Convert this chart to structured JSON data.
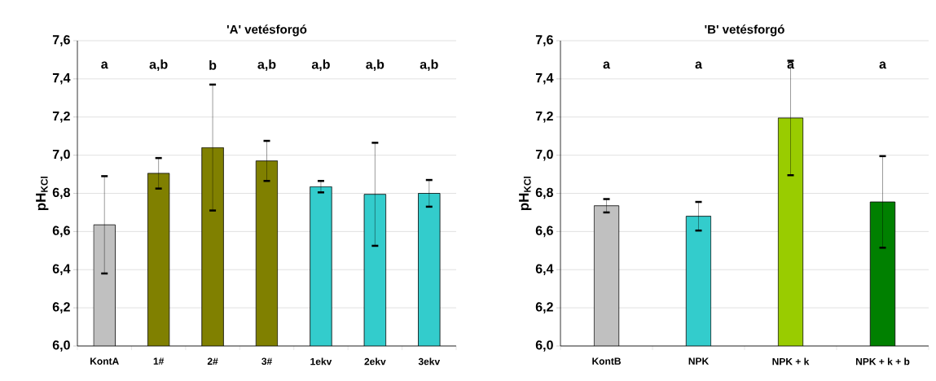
{
  "chart_data": [
    {
      "type": "bar",
      "title": "'A' vetésforgó",
      "ylabel": "pH$_{KCl}$",
      "categories": [
        "KontA",
        "1#",
        "2#",
        "3#",
        "1ekv",
        "2ekv",
        "3ekv"
      ],
      "values": [
        6.635,
        6.905,
        7.04,
        6.97,
        6.835,
        6.795,
        6.8
      ],
      "errors": [
        0.255,
        0.08,
        0.33,
        0.105,
        0.03,
        0.27,
        0.07
      ],
      "colors": [
        "#c0c0c0",
        "#808000",
        "#808000",
        "#808000",
        "#33cccc",
        "#33cccc",
        "#33cccc"
      ],
      "ylim": [
        6.0,
        7.6
      ],
      "yticks": [
        {
          "value": 6.0,
          "label": "6,0"
        },
        {
          "value": 6.2,
          "label": "6,2"
        },
        {
          "value": 6.4,
          "label": "6,4"
        },
        {
          "value": 6.6,
          "label": "6,6"
        },
        {
          "value": 6.8,
          "label": "6,8"
        },
        {
          "value": 7.0,
          "label": "7,0"
        },
        {
          "value": 7.2,
          "label": "7,2"
        },
        {
          "value": 7.4,
          "label": "7,4"
        },
        {
          "value": 7.6,
          "label": "7,6"
        }
      ],
      "grid": "y",
      "annotations": [
        "a",
        "a,b",
        "b",
        "a,b",
        "a,b",
        "a,b",
        "a,b"
      ]
    },
    {
      "type": "bar",
      "title": "'B' vetésforgó",
      "ylabel": "pH$_{KCl}$",
      "categories": [
        "KontB",
        "NPK",
        "NPK + k",
        "NPK + k + b"
      ],
      "values": [
        6.735,
        6.68,
        7.195,
        6.755
      ],
      "errors": [
        0.035,
        0.075,
        0.3,
        0.24
      ],
      "colors": [
        "#c0c0c0",
        "#33cccc",
        "#99cc00",
        "#008000"
      ],
      "ylim": [
        6.0,
        7.6
      ],
      "yticks": [
        {
          "value": 6.0,
          "label": "6,0"
        },
        {
          "value": 6.2,
          "label": "6,2"
        },
        {
          "value": 6.4,
          "label": "6,4"
        },
        {
          "value": 6.6,
          "label": "6,6"
        },
        {
          "value": 6.8,
          "label": "6,8"
        },
        {
          "value": 7.0,
          "label": "7,0"
        },
        {
          "value": 7.2,
          "label": "7,2"
        },
        {
          "value": 7.4,
          "label": "7,4"
        },
        {
          "value": 7.6,
          "label": "7,6"
        }
      ],
      "grid": "y",
      "annotations": [
        "a",
        "a",
        "a",
        "a"
      ]
    }
  ]
}
